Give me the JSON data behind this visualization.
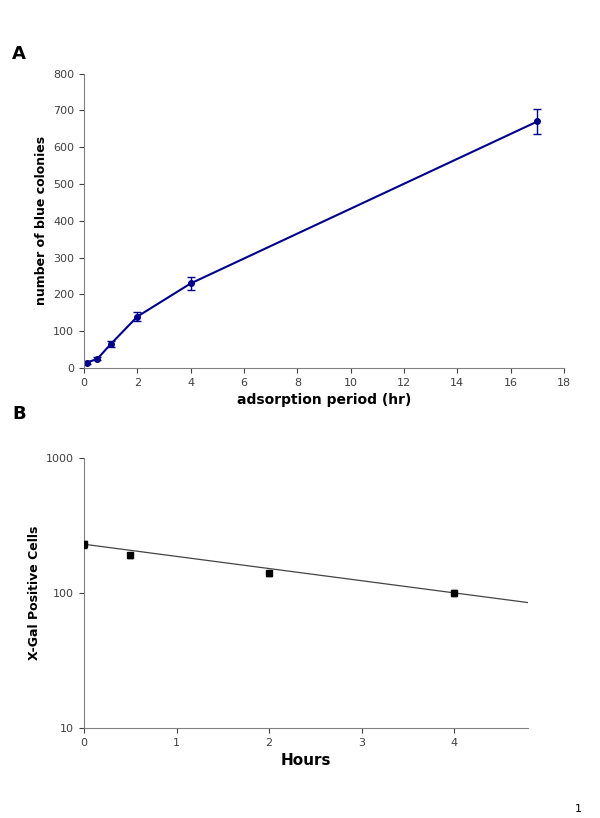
{
  "panel_A": {
    "x": [
      0.1,
      0.5,
      1.0,
      2.0,
      4.0,
      17.0
    ],
    "y": [
      15,
      25,
      65,
      140,
      230,
      670
    ],
    "yerr": [
      3,
      4,
      8,
      12,
      18,
      35
    ],
    "color": "#00008B",
    "xlabel": "adsorption period (hr)",
    "ylabel": "number of blue colonies",
    "xlim": [
      0,
      18
    ],
    "ylim": [
      0,
      800
    ],
    "xticks": [
      0,
      2,
      4,
      6,
      8,
      10,
      12,
      14,
      16,
      18
    ],
    "yticks": [
      0,
      100,
      200,
      300,
      400,
      500,
      600,
      700,
      800
    ],
    "label": "A"
  },
  "panel_B": {
    "x": [
      0.0,
      0.5,
      2.0,
      4.0
    ],
    "y": [
      230,
      190,
      140,
      100
    ],
    "yerr": [
      15,
      8,
      6,
      5
    ],
    "color": "#000000",
    "fit_x": [
      0.0,
      4.8
    ],
    "fit_y": [
      230,
      85
    ],
    "xlabel": "Hours",
    "ylabel": "X-Gal Positive Cells",
    "xlim": [
      0,
      4.8
    ],
    "ylim": [
      10,
      1000
    ],
    "xticks": [
      0,
      1,
      2,
      3,
      4
    ],
    "label": "B"
  },
  "fig_width": 6.0,
  "fig_height": 8.18,
  "background_color": "#ffffff"
}
